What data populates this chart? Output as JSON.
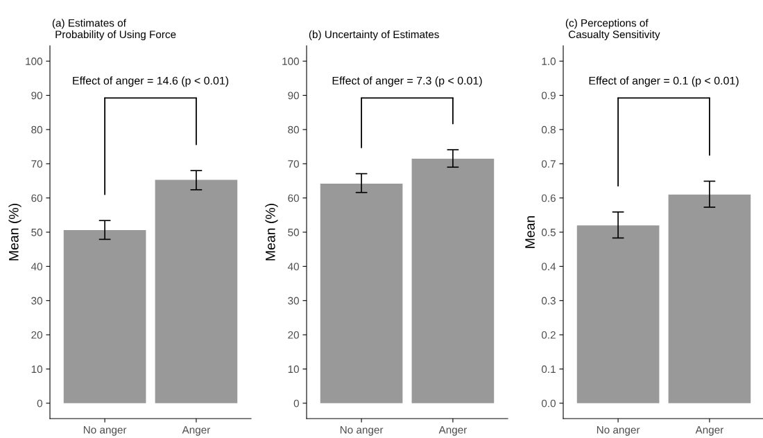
{
  "chart_data": [
    {
      "type": "bar",
      "title": "(a) Estimates of\n Probability of Using Force",
      "ylabel": "Mean (%)",
      "categories": [
        "No anger",
        "Anger"
      ],
      "values": [
        50.6,
        65.3
      ],
      "errors": [
        [
          47.9,
          53.4
        ],
        [
          62.4,
          68.0
        ]
      ],
      "color": "#999999",
      "ylim": [
        -4.5,
        104.5
      ],
      "yticks": [
        0,
        10,
        20,
        30,
        40,
        50,
        60,
        70,
        80,
        90,
        100
      ],
      "grid": false,
      "legend": false,
      "annotations": [
        "Effect of anger = 14.6 (p < 0.01)"
      ]
    },
    {
      "type": "bar",
      "title": "(b) Uncertainty of Estimates",
      "ylabel": "Mean (%)",
      "categories": [
        "No anger",
        "Anger"
      ],
      "values": [
        64.2,
        71.5
      ],
      "errors": [
        [
          61.6,
          67.1
        ],
        [
          69.0,
          74.1
        ]
      ],
      "color": "#999999",
      "ylim": [
        -4.5,
        104.5
      ],
      "yticks": [
        0,
        10,
        20,
        30,
        40,
        50,
        60,
        70,
        80,
        90,
        100
      ],
      "grid": false,
      "legend": false,
      "annotations": [
        "Effect of anger = 7.3 (p < 0.01)"
      ]
    },
    {
      "type": "bar",
      "title": "(c) Perceptions of\n Casualty Sensitivity",
      "ylabel": "Mean",
      "categories": [
        "No anger",
        "Anger"
      ],
      "values": [
        0.52,
        0.61
      ],
      "errors": [
        [
          0.483,
          0.559
        ],
        [
          0.573,
          0.649
        ]
      ],
      "color": "#999999",
      "ylim": [
        -0.045,
        1.045
      ],
      "yticks": [
        {
          "value": 0,
          "label": "0.0"
        },
        {
          "value": 0.1,
          "label": "0.1"
        },
        {
          "value": 0.2,
          "label": "0.2"
        },
        {
          "value": 0.3,
          "label": "0.3"
        },
        {
          "value": 0.4,
          "label": "0.4"
        },
        {
          "value": 0.5,
          "label": "0.5"
        },
        {
          "value": 0.6,
          "label": "0.6"
        },
        {
          "value": 0.7,
          "label": "0.7"
        },
        {
          "value": 0.8,
          "label": "0.8"
        },
        {
          "value": 0.9,
          "label": "0.9"
        },
        {
          "value": 1,
          "label": "1.0"
        }
      ],
      "grid": false,
      "legend": false,
      "annotations": [
        "Effect of anger = 0.1 (p < 0.01)"
      ]
    }
  ]
}
